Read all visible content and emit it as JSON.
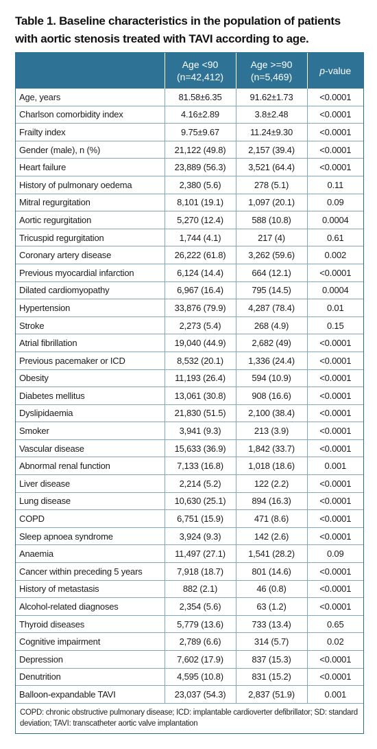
{
  "caption": "Table 1. Baseline characteristics in the population of patients with aortic stenosis treated with TAVI according to age.",
  "headers": {
    "col1_line1": "Age <90",
    "col1_line2": "(n=42,412)",
    "col2_line1": "Age >=90",
    "col2_line2": "(n=5,469)",
    "col3_prefix": "p",
    "col3_suffix": "-value"
  },
  "rows": [
    {
      "label": "Age, years",
      "under90": "81.58±6.35",
      "over90": "91.62±1.73",
      "p": "<0.0001"
    },
    {
      "label": "Charlson comorbidity index",
      "under90": "4.16±2.89",
      "over90": "3.8±2.48",
      "p": "<0.0001"
    },
    {
      "label": "Frailty index",
      "under90": "9.75±9.67",
      "over90": "11.24±9.30",
      "p": "<0.0001"
    },
    {
      "label": "Gender (male), n (%)",
      "under90": "21,122 (49.8)",
      "over90": "2,157 (39.4)",
      "p": "<0.0001"
    },
    {
      "label": "Heart failure",
      "under90": "23,889 (56.3)",
      "over90": "3,521 (64.4)",
      "p": "<0.0001"
    },
    {
      "label": "History of pulmonary oedema",
      "under90": "2,380 (5.6)",
      "over90": "278 (5.1)",
      "p": "0.11"
    },
    {
      "label": "Mitral regurgitation",
      "under90": "8,101 (19.1)",
      "over90": "1,097 (20.1)",
      "p": "0.09"
    },
    {
      "label": "Aortic regurgitation",
      "under90": "5,270 (12.4)",
      "over90": "588 (10.8)",
      "p": "0.0004"
    },
    {
      "label": "Tricuspid regurgitation",
      "under90": "1,744 (4.1)",
      "over90": "217 (4)",
      "p": "0.61"
    },
    {
      "label": "Coronary artery disease",
      "under90": "26,222 (61.8)",
      "over90": "3,262 (59.6)",
      "p": "0.002"
    },
    {
      "label": "Previous myocardial infarction",
      "under90": "6,124 (14.4)",
      "over90": "664 (12.1)",
      "p": "<0.0001"
    },
    {
      "label": "Dilated cardiomyopathy",
      "under90": "6,967 (16.4)",
      "over90": "795 (14.5)",
      "p": "0.0004"
    },
    {
      "label": "Hypertension",
      "under90": "33,876 (79.9)",
      "over90": "4,287 (78.4)",
      "p": "0.01"
    },
    {
      "label": "Stroke",
      "under90": "2,273 (5.4)",
      "over90": "268 (4.9)",
      "p": "0.15"
    },
    {
      "label": "Atrial fibrillation",
      "under90": "19,040 (44.9)",
      "over90": "2,682 (49)",
      "p": "<0.0001"
    },
    {
      "label": "Previous pacemaker or ICD",
      "under90": "8,532 (20.1)",
      "over90": "1,336 (24.4)",
      "p": "<0.0001"
    },
    {
      "label": "Obesity",
      "under90": "11,193 (26.4)",
      "over90": "594 (10.9)",
      "p": "<0.0001"
    },
    {
      "label": "Diabetes mellitus",
      "under90": "13,061 (30.8)",
      "over90": "908 (16.6)",
      "p": "<0.0001"
    },
    {
      "label": "Dyslipidaemia",
      "under90": "21,830 (51.5)",
      "over90": "2,100 (38.4)",
      "p": "<0.0001"
    },
    {
      "label": "Smoker",
      "under90": "3,941 (9.3)",
      "over90": "213 (3.9)",
      "p": "<0.0001"
    },
    {
      "label": "Vascular disease",
      "under90": "15,633 (36.9)",
      "over90": "1,842 (33.7)",
      "p": "<0.0001"
    },
    {
      "label": "Abnormal renal function",
      "under90": "7,133 (16.8)",
      "over90": "1,018 (18.6)",
      "p": "0.001"
    },
    {
      "label": "Liver disease",
      "under90": "2,214 (5.2)",
      "over90": "122 (2.2)",
      "p": "<0.0001"
    },
    {
      "label": "Lung disease",
      "under90": "10,630 (25.1)",
      "over90": "894 (16.3)",
      "p": "<0.0001"
    },
    {
      "label": "COPD",
      "under90": "6,751 (15.9)",
      "over90": "471 (8.6)",
      "p": "<0.0001"
    },
    {
      "label": "Sleep apnoea syndrome",
      "under90": "3,924 (9.3)",
      "over90": "142 (2.6)",
      "p": "<0.0001"
    },
    {
      "label": "Anaemia",
      "under90": "11,497 (27.1)",
      "over90": "1,541 (28.2)",
      "p": "0.09"
    },
    {
      "label": "Cancer within preceding 5 years",
      "under90": "7,918 (18.7)",
      "over90": "801 (14.6)",
      "p": "<0.0001"
    },
    {
      "label": "History of metastasis",
      "under90": "882 (2.1)",
      "over90": "46 (0.8)",
      "p": "<0.0001"
    },
    {
      "label": "Alcohol-related diagnoses",
      "under90": "2,354 (5.6)",
      "over90": "63 (1.2)",
      "p": "<0.0001"
    },
    {
      "label": "Thyroid diseases",
      "under90": "5,779 (13.6)",
      "over90": "733 (13.4)",
      "p": "0.65"
    },
    {
      "label": "Cognitive impairment",
      "under90": "2,789 (6.6)",
      "over90": "314 (5.7)",
      "p": "0.02"
    },
    {
      "label": "Depression",
      "under90": "7,602 (17.9)",
      "over90": "837 (15.3)",
      "p": "<0.0001"
    },
    {
      "label": "Denutrition",
      "under90": "4,595 (10.8)",
      "over90": "831 (15.2)",
      "p": "<0.0001"
    },
    {
      "label": "Balloon-expandable TAVI",
      "under90": "23,037 (54.3)",
      "over90": "2,837 (51.9)",
      "p": "0.001"
    }
  ],
  "footnote": "COPD: chronic obstructive pulmonary disease; ICD: implantable cardioverter defibrillator; SD: standard deviation; TAVI: transcatheter aortic valve implantation",
  "colors": {
    "header_bg": "#2e7395",
    "border": "#7fa6bb"
  }
}
